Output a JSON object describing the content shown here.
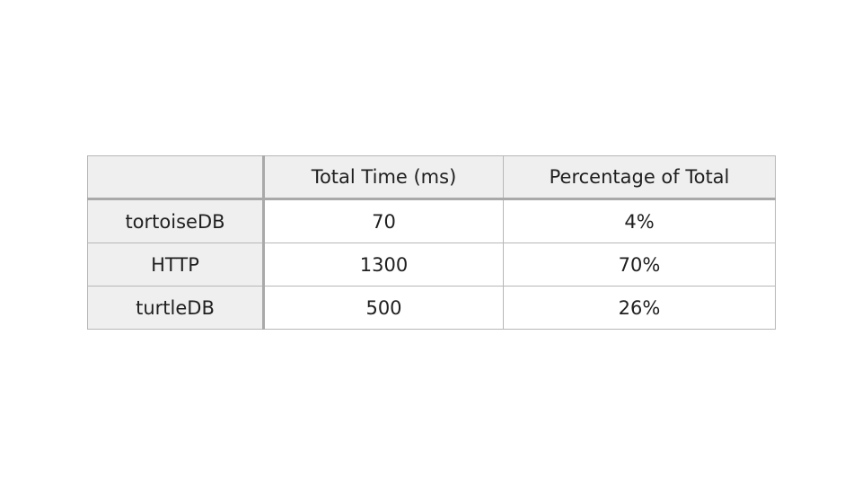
{
  "table": {
    "header": [
      "",
      "Total Time (ms)",
      "Percentage of Total"
    ],
    "rows": [
      {
        "label": "tortoiseDB",
        "total_time": "70",
        "percentage": "4%"
      },
      {
        "label": "HTTP",
        "total_time": "1300",
        "percentage": "70%"
      },
      {
        "label": "turtleDB",
        "total_time": "500",
        "percentage": "26%"
      }
    ]
  }
}
